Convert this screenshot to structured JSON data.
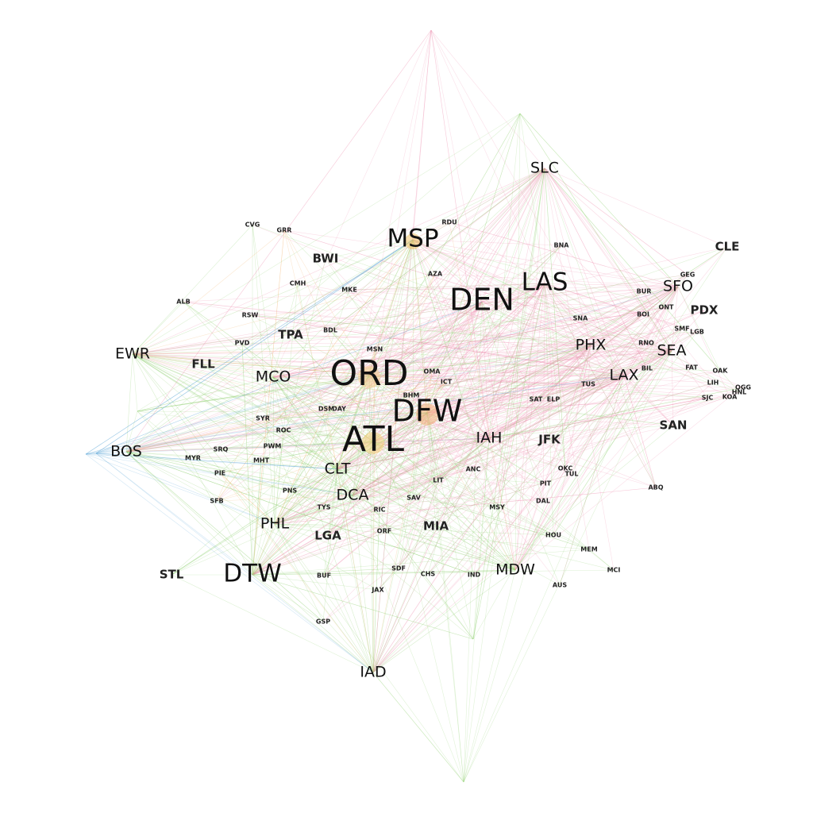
{
  "network": {
    "edge_colors": {
      "green": "#8fcf6f",
      "pink": "#ee8fb0",
      "orange": "#f2b36b",
      "blue": "#5aa6d6"
    },
    "nodes": [
      {
        "code": "ATL",
        "weight": 5,
        "group": "green"
      },
      {
        "code": "ORD",
        "weight": 5,
        "group": "orange"
      },
      {
        "code": "DFW",
        "weight": 4,
        "group": "orange"
      },
      {
        "code": "DEN",
        "weight": 4,
        "group": "pink"
      },
      {
        "code": "DTW",
        "weight": 3,
        "group": "green"
      },
      {
        "code": "MSP",
        "weight": 3,
        "group": "orange"
      },
      {
        "code": "LAS",
        "weight": 3,
        "group": "pink"
      },
      {
        "code": "LAX",
        "weight": 2,
        "group": "pink"
      },
      {
        "code": "IAH",
        "weight": 2,
        "group": "pink"
      },
      {
        "code": "CLT",
        "weight": 2,
        "group": "green"
      },
      {
        "code": "PHX",
        "weight": 2,
        "group": "pink"
      },
      {
        "code": "SEA",
        "weight": 2,
        "group": "pink"
      },
      {
        "code": "SFO",
        "weight": 2,
        "group": "pink"
      },
      {
        "code": "SLC",
        "weight": 2,
        "group": "pink"
      },
      {
        "code": "DCA",
        "weight": 2,
        "group": "green"
      },
      {
        "code": "PHL",
        "weight": 2,
        "group": "green"
      },
      {
        "code": "MCO",
        "weight": 2,
        "group": "green"
      },
      {
        "code": "EWR",
        "weight": 2,
        "group": "green"
      },
      {
        "code": "BOS",
        "weight": 2,
        "group": "green"
      },
      {
        "code": "IAD",
        "weight": 2,
        "group": "green"
      },
      {
        "code": "MDW",
        "weight": 2,
        "group": "green"
      },
      {
        "code": "LGA",
        "weight": 1,
        "group": "green"
      },
      {
        "code": "TPA",
        "weight": 1,
        "group": "green"
      },
      {
        "code": "BWI",
        "weight": 1,
        "group": "green"
      },
      {
        "code": "JFK",
        "weight": 1,
        "group": "pink"
      },
      {
        "code": "MIA",
        "weight": 1,
        "group": "green"
      },
      {
        "code": "FLL",
        "weight": 1,
        "group": "green"
      },
      {
        "code": "SAN",
        "weight": 1,
        "group": "pink"
      },
      {
        "code": "STL",
        "weight": 1,
        "group": "green"
      },
      {
        "code": "CLE",
        "weight": 1,
        "group": "green"
      },
      {
        "code": "PDX",
        "weight": 1,
        "group": "pink"
      },
      {
        "code": "MSY",
        "weight": 0,
        "group": "green"
      },
      {
        "code": "HOU",
        "weight": 0,
        "group": "green"
      },
      {
        "code": "MCI",
        "weight": 0,
        "group": "green"
      },
      {
        "code": "CVG",
        "weight": 0,
        "group": "green"
      },
      {
        "code": "BNA",
        "weight": 0,
        "group": "pink"
      },
      {
        "code": "RDU",
        "weight": 0,
        "group": "orange"
      },
      {
        "code": "AUS",
        "weight": 0,
        "group": "pink"
      },
      {
        "code": "MEM",
        "weight": 0,
        "group": "green"
      },
      {
        "code": "IND",
        "weight": 0,
        "group": "green"
      },
      {
        "code": "PIT",
        "weight": 0,
        "group": "pink"
      },
      {
        "code": "SAT",
        "weight": 0,
        "group": "pink"
      },
      {
        "code": "SFB",
        "weight": 0,
        "group": "orange"
      },
      {
        "code": "PIE",
        "weight": 0,
        "group": "orange"
      },
      {
        "code": "OAK",
        "weight": 0,
        "group": "pink"
      },
      {
        "code": "SMF",
        "weight": 0,
        "group": "pink"
      },
      {
        "code": "SJC",
        "weight": 0,
        "group": "pink"
      },
      {
        "code": "HNL",
        "weight": 0,
        "group": "pink"
      },
      {
        "code": "OGG",
        "weight": 0,
        "group": "pink"
      },
      {
        "code": "ANC",
        "weight": 0,
        "group": "green"
      },
      {
        "code": "AZA",
        "weight": 0,
        "group": "orange"
      },
      {
        "code": "RSW",
        "weight": 0,
        "group": "green"
      },
      {
        "code": "CMH",
        "weight": 0,
        "group": "green"
      },
      {
        "code": "MKE",
        "weight": 0,
        "group": "green"
      },
      {
        "code": "ABQ",
        "weight": 0,
        "group": "pink"
      },
      {
        "code": "GRR",
        "weight": 0,
        "group": "orange"
      },
      {
        "code": "ALB",
        "weight": 0,
        "group": "green"
      },
      {
        "code": "OKC",
        "weight": 0,
        "group": "pink"
      },
      {
        "code": "DAL",
        "weight": 0,
        "group": "pink"
      },
      {
        "code": "OMA",
        "weight": 0,
        "group": "orange"
      },
      {
        "code": "BHM",
        "weight": 0,
        "group": "orange"
      },
      {
        "code": "BDL",
        "weight": 0,
        "group": "green"
      },
      {
        "code": "JAX",
        "weight": 0,
        "group": "green"
      },
      {
        "code": "BUF",
        "weight": 0,
        "group": "green"
      },
      {
        "code": "SDF",
        "weight": 0,
        "group": "green"
      },
      {
        "code": "CHS",
        "weight": 0,
        "group": "green"
      },
      {
        "code": "GSP",
        "weight": 0,
        "group": "green"
      },
      {
        "code": "MYR",
        "weight": 0,
        "group": "green"
      },
      {
        "code": "PVD",
        "weight": 0,
        "group": "green"
      },
      {
        "code": "ELP",
        "weight": 0,
        "group": "pink"
      },
      {
        "code": "TUS",
        "weight": 0,
        "group": "pink"
      },
      {
        "code": "SNA",
        "weight": 0,
        "group": "pink"
      },
      {
        "code": "BUR",
        "weight": 0,
        "group": "pink"
      },
      {
        "code": "ONT",
        "weight": 0,
        "group": "pink"
      },
      {
        "code": "LGB",
        "weight": 0,
        "group": "pink"
      },
      {
        "code": "BOI",
        "weight": 0,
        "group": "pink"
      },
      {
        "code": "GEG",
        "weight": 0,
        "group": "pink"
      },
      {
        "code": "RNO",
        "weight": 0,
        "group": "pink"
      },
      {
        "code": "DSM",
        "weight": 0,
        "group": "orange"
      },
      {
        "code": "DAY",
        "weight": 0,
        "group": "green"
      },
      {
        "code": "ORF",
        "weight": 0,
        "group": "green"
      },
      {
        "code": "RIC",
        "weight": 0,
        "group": "green"
      },
      {
        "code": "SAV",
        "weight": 0,
        "group": "green"
      },
      {
        "code": "LIT",
        "weight": 0,
        "group": "green"
      },
      {
        "code": "TYS",
        "weight": 0,
        "group": "green"
      },
      {
        "code": "ICT",
        "weight": 0,
        "group": "orange"
      },
      {
        "code": "TUL",
        "weight": 0,
        "group": "pink"
      },
      {
        "code": "SYR",
        "weight": 0,
        "group": "green"
      },
      {
        "code": "PWM",
        "weight": 0,
        "group": "green"
      },
      {
        "code": "MHT",
        "weight": 0,
        "group": "green"
      },
      {
        "code": "PNS",
        "weight": 0,
        "group": "green"
      },
      {
        "code": "ROC",
        "weight": 0,
        "group": "green"
      },
      {
        "code": "SRQ",
        "weight": 0,
        "group": "green"
      },
      {
        "code": "MSN",
        "weight": 0,
        "group": "orange"
      },
      {
        "code": "BIL",
        "weight": 0,
        "group": "pink"
      },
      {
        "code": "FAT",
        "weight": 0,
        "group": "pink"
      },
      {
        "code": "KOA",
        "weight": 0,
        "group": "pink"
      },
      {
        "code": "LIH",
        "weight": 0,
        "group": "pink"
      }
    ]
  }
}
